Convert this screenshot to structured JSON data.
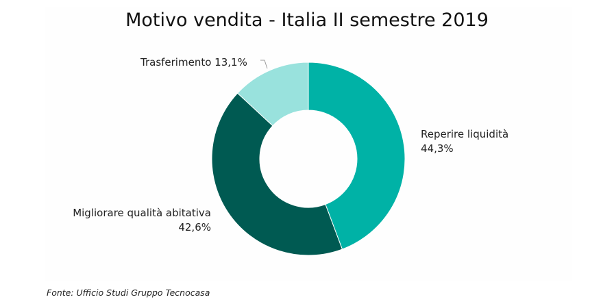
{
  "chart_data": {
    "type": "pie",
    "title": "Motivo vendita - Italia II semestre 2019",
    "slices": [
      {
        "label": "Reperire liquidità",
        "value": 44.3,
        "value_label": "44,3%",
        "color": "#00b2a6"
      },
      {
        "label": "Migliorare qualità abitativa",
        "value": 42.6,
        "value_label": "42,6%",
        "color": "#005a52"
      },
      {
        "label": "Trasferimento",
        "value": 13.1,
        "value_label": "13,1%",
        "color": "#99e2dd"
      }
    ],
    "donut": true
  },
  "source": "Fonte: Ufficio Studi Gruppo Tecnocasa"
}
